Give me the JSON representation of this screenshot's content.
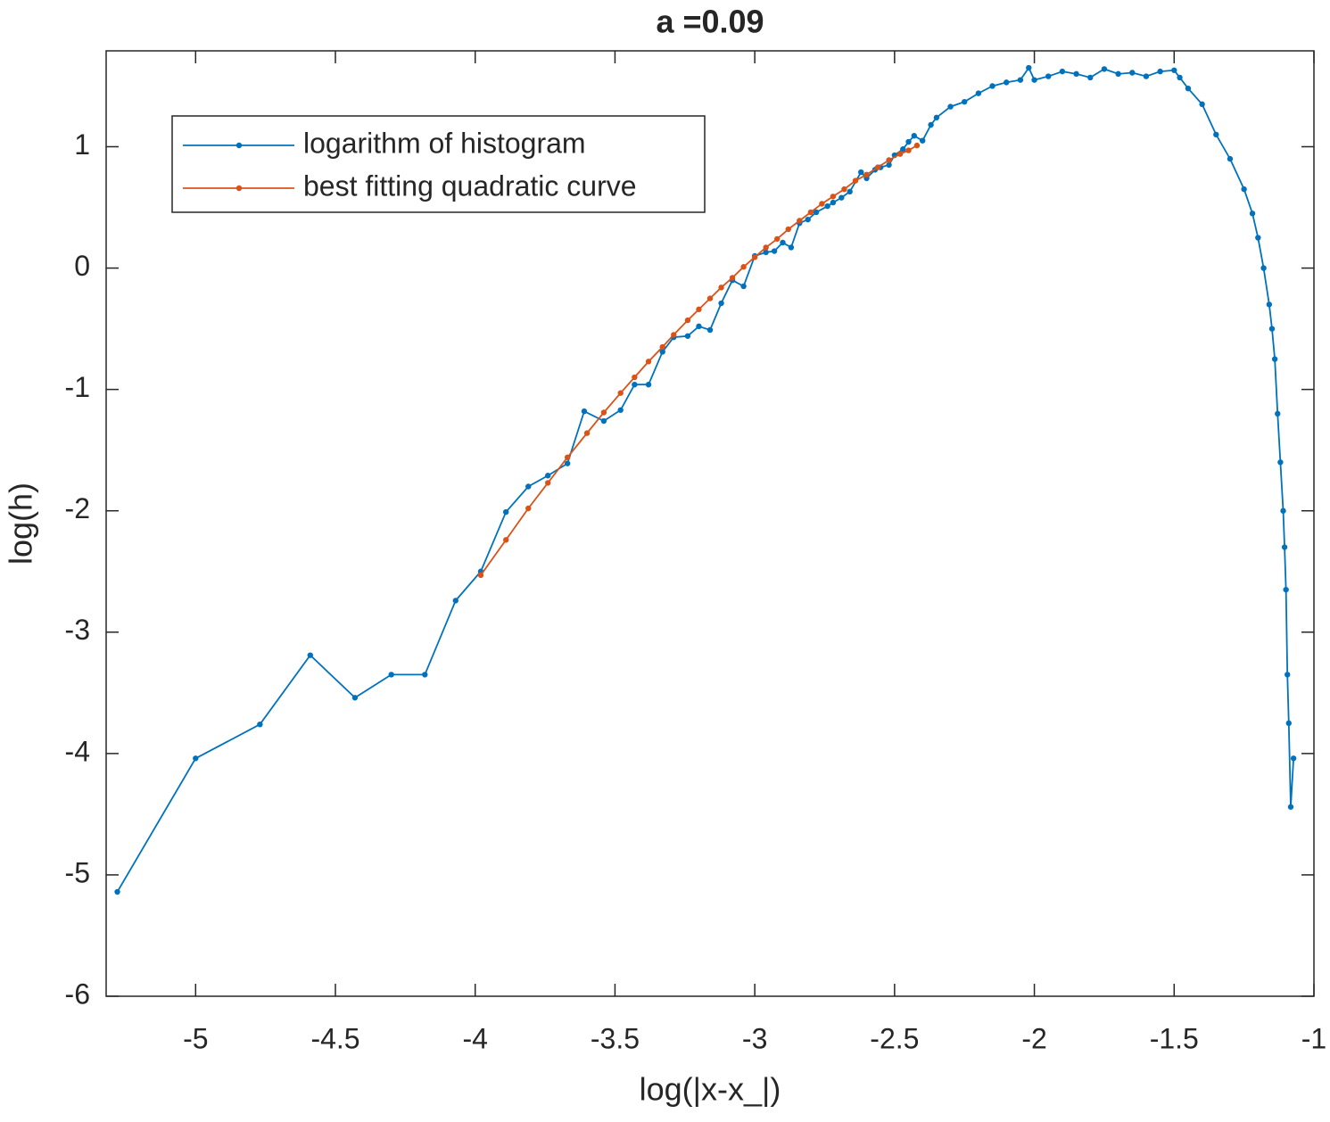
{
  "chart_data": {
    "type": "line",
    "title": "a =0.09",
    "x_label": "log(|x-x_|)",
    "y_label": "log(h)",
    "xlim": [
      -5.32,
      -1
    ],
    "ylim": [
      -6,
      1.79
    ],
    "xticks": [
      -5,
      -4.5,
      -4,
      -3.5,
      -3,
      -2.5,
      -2,
      -1.5,
      -1
    ],
    "yticks": [
      -6,
      -5,
      -4,
      -3,
      -2,
      -1,
      0,
      1
    ],
    "legend": "northwest",
    "grid": false,
    "series": [
      {
        "name": "logarithm of histogram",
        "color": "#0072bd",
        "x": [
          -5.28,
          -5.0,
          -4.77,
          -4.59,
          -4.43,
          -4.3,
          -4.18,
          -4.07,
          -3.98,
          -3.89,
          -3.81,
          -3.74,
          -3.67,
          -3.61,
          -3.54,
          -3.48,
          -3.43,
          -3.38,
          -3.33,
          -3.29,
          -3.24,
          -3.2,
          -3.16,
          -3.12,
          -3.08,
          -3.04,
          -3.0,
          -2.96,
          -2.93,
          -2.9,
          -2.87,
          -2.84,
          -2.81,
          -2.78,
          -2.74,
          -2.72,
          -2.69,
          -2.66,
          -2.62,
          -2.6,
          -2.57,
          -2.55,
          -2.52,
          -2.5,
          -2.47,
          -2.45,
          -2.43,
          -2.4,
          -2.37,
          -2.35,
          -2.3,
          -2.25,
          -2.2,
          -2.15,
          -2.1,
          -2.05,
          -2.02,
          -2.0,
          -1.95,
          -1.9,
          -1.85,
          -1.8,
          -1.75,
          -1.7,
          -1.65,
          -1.6,
          -1.55,
          -1.5,
          -1.48,
          -1.45,
          -1.4,
          -1.35,
          -1.3,
          -1.25,
          -1.22,
          -1.2,
          -1.18,
          -1.16,
          -1.15,
          -1.14,
          -1.13,
          -1.12,
          -1.11,
          -1.105,
          -1.1,
          -1.095,
          -1.09,
          -1.083,
          -1.073
        ],
        "values": [
          -5.14,
          -4.04,
          -3.76,
          -3.19,
          -3.54,
          -3.35,
          -3.35,
          -2.74,
          -2.5,
          -2.01,
          -1.8,
          -1.71,
          -1.61,
          -1.18,
          -1.26,
          -1.17,
          -0.96,
          -0.96,
          -0.69,
          -0.57,
          -0.56,
          -0.48,
          -0.51,
          -0.29,
          -0.1,
          -0.15,
          0.1,
          0.13,
          0.14,
          0.21,
          0.17,
          0.37,
          0.4,
          0.46,
          0.51,
          0.54,
          0.58,
          0.63,
          0.79,
          0.74,
          0.81,
          0.83,
          0.85,
          0.93,
          0.98,
          1.04,
          1.09,
          1.05,
          1.18,
          1.24,
          1.33,
          1.37,
          1.44,
          1.5,
          1.53,
          1.55,
          1.65,
          1.55,
          1.58,
          1.62,
          1.6,
          1.57,
          1.64,
          1.6,
          1.61,
          1.58,
          1.62,
          1.63,
          1.57,
          1.48,
          1.35,
          1.1,
          0.9,
          0.65,
          0.45,
          0.25,
          0.0,
          -0.3,
          -0.5,
          -0.75,
          -1.2,
          -1.6,
          -2.0,
          -2.3,
          -2.65,
          -3.35,
          -3.75,
          -4.44,
          -4.04
        ]
      },
      {
        "name": "best fitting quadratic curve",
        "color": "#d95319",
        "x": [
          -3.98,
          -3.89,
          -3.81,
          -3.74,
          -3.67,
          -3.6,
          -3.54,
          -3.48,
          -3.43,
          -3.38,
          -3.33,
          -3.29,
          -3.24,
          -3.2,
          -3.16,
          -3.12,
          -3.08,
          -3.04,
          -3.0,
          -2.96,
          -2.92,
          -2.88,
          -2.84,
          -2.8,
          -2.76,
          -2.72,
          -2.68,
          -2.64,
          -2.6,
          -2.56,
          -2.52,
          -2.48,
          -2.45,
          -2.42
        ],
        "values": [
          -2.53,
          -2.24,
          -1.98,
          -1.77,
          -1.56,
          -1.36,
          -1.19,
          -1.03,
          -0.9,
          -0.77,
          -0.65,
          -0.55,
          -0.43,
          -0.34,
          -0.25,
          -0.16,
          -0.08,
          0.01,
          0.09,
          0.17,
          0.24,
          0.32,
          0.39,
          0.46,
          0.53,
          0.59,
          0.65,
          0.72,
          0.77,
          0.83,
          0.89,
          0.94,
          0.97,
          1.01
        ]
      }
    ]
  }
}
